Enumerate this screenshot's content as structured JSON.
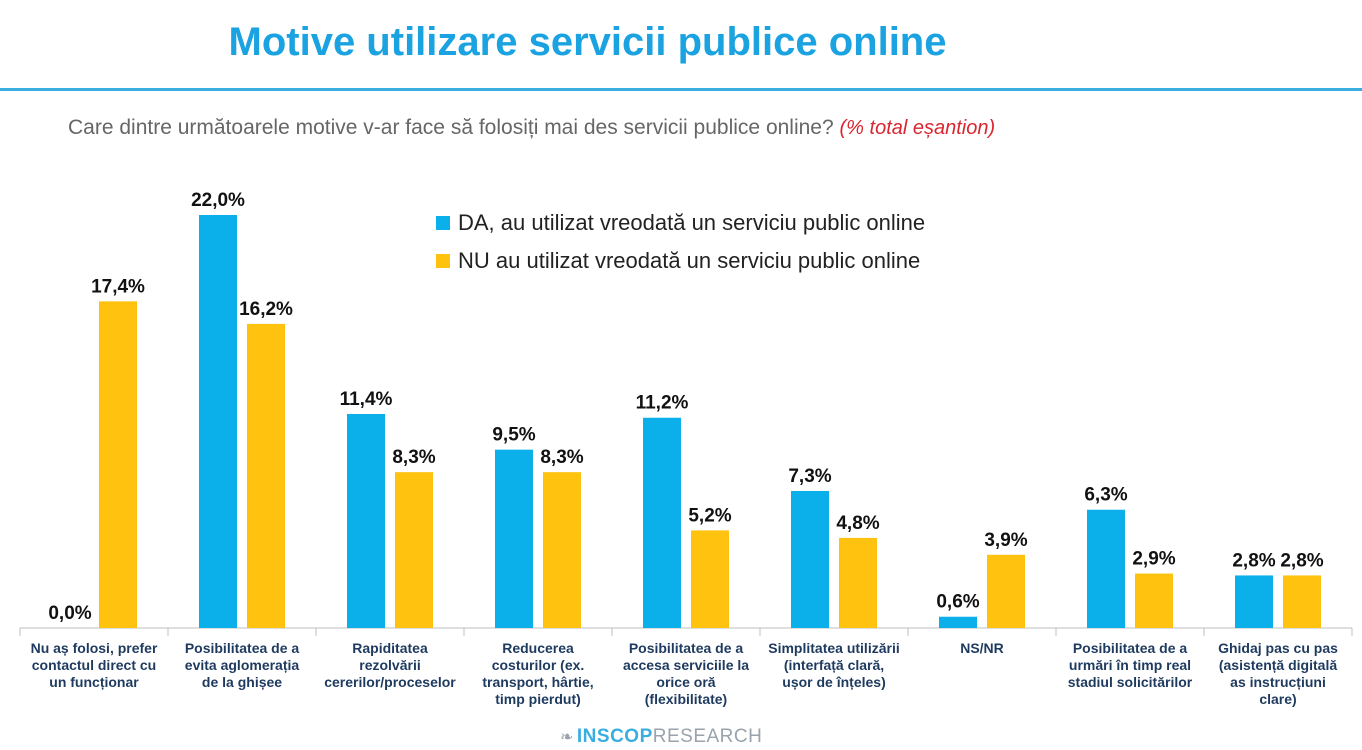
{
  "header": {
    "title": "Motive utilizare servicii publice online",
    "question": "Care dintre următoarele motive v-ar face să folosiți mai des servicii publice online?",
    "question_note": "(% total eșantion)"
  },
  "footer": {
    "brand": "INSCOP",
    "brand_suffix": "RESEARCH"
  },
  "colors": {
    "da": "#0bb0ea",
    "nu": "#ffc20e",
    "title": "#1aa3e0"
  },
  "chart_data": {
    "type": "bar",
    "categories": [
      [
        "Nu aș folosi, prefer",
        "contactul direct cu",
        "un funcționar"
      ],
      [
        "Posibilitatea de a",
        "evita aglomerația",
        "de la ghișee"
      ],
      [
        "Rapiditatea",
        "rezolvării",
        "cererilor/proceselor"
      ],
      [
        "Reducerea",
        "costurilor (ex.",
        "transport, hârtie,",
        "timp pierdut)"
      ],
      [
        "Posibilitatea de a",
        "accesa serviciile la",
        "orice oră",
        "(flexibilitate)"
      ],
      [
        "Simplitatea utilizării",
        "(interfață clară,",
        "ușor de înțeles)"
      ],
      [
        "NS/NR"
      ],
      [
        "Posibilitatea de a",
        "urmări în timp real",
        "stadiul solicitărilor"
      ],
      [
        "Ghidaj pas cu pas",
        "(asistență digitală",
        "as instrucțiuni",
        "clare)"
      ]
    ],
    "series": [
      {
        "name": "DA, au utilizat vreodată un serviciu public online",
        "values": [
          0.0,
          22.0,
          11.4,
          9.5,
          11.2,
          7.3,
          0.6,
          6.3,
          2.8
        ],
        "labels": [
          "0,0%",
          "22,0%",
          "11,4%",
          "9,5%",
          "11,2%",
          "7,3%",
          "0,6%",
          "6,3%",
          "2,8%"
        ]
      },
      {
        "name": "NU au utilizat vreodată un serviciu public online",
        "values": [
          17.4,
          16.2,
          8.3,
          8.3,
          5.2,
          4.8,
          3.9,
          2.9,
          2.8
        ],
        "labels": [
          "17,4%",
          "16,2%",
          "8,3%",
          "8,3%",
          "5,2%",
          "4,8%",
          "3,9%",
          "2,9%",
          "2,8%"
        ]
      }
    ],
    "ylim": [
      0,
      22.0
    ],
    "grid": false,
    "legend_position": "top-center"
  }
}
